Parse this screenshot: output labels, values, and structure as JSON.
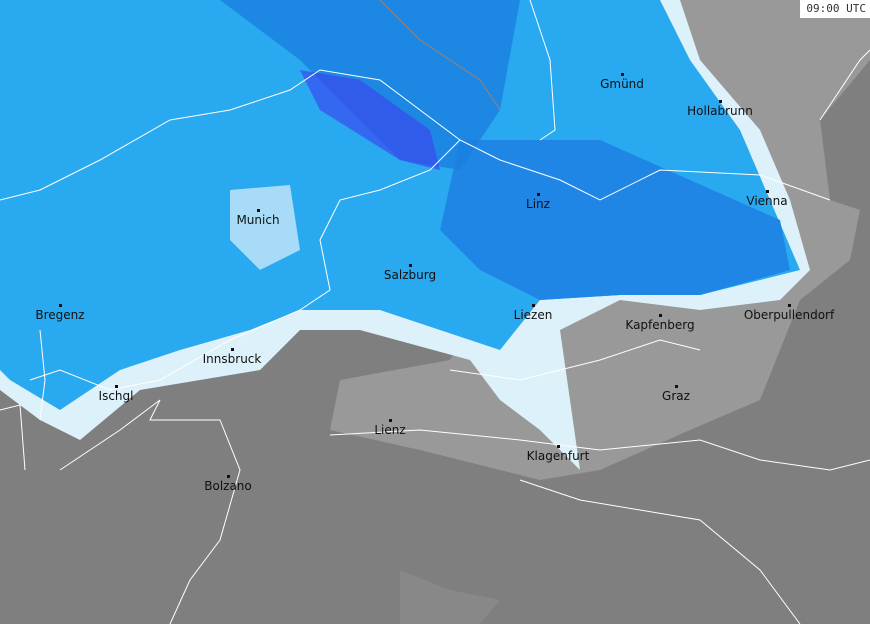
{
  "timestamp": "09:00 UTC",
  "colors": {
    "terrain_low": "#7f7f7f",
    "terrain_high": "#999999",
    "snow_light": "#ddf1fb",
    "snow_moderate": "#29a9ef",
    "snow_heavy": "#1a7fe0",
    "snow_intense": "#3d3df0",
    "borders": "#ffffff"
  },
  "cities": [
    {
      "name": "Gmünd"
    },
    {
      "name": "Hollabrunn"
    },
    {
      "name": "Linz"
    },
    {
      "name": "Vienna"
    },
    {
      "name": "Munich"
    },
    {
      "name": "Salzburg"
    },
    {
      "name": "Bregenz"
    },
    {
      "name": "Liezen"
    },
    {
      "name": "Kapfenberg"
    },
    {
      "name": "Oberpullendorf"
    },
    {
      "name": "Innsbruck"
    },
    {
      "name": "Ischgl"
    },
    {
      "name": "Graz"
    },
    {
      "name": "Lienz"
    },
    {
      "name": "Klagenfurt"
    },
    {
      "name": "Bolzano"
    }
  ]
}
